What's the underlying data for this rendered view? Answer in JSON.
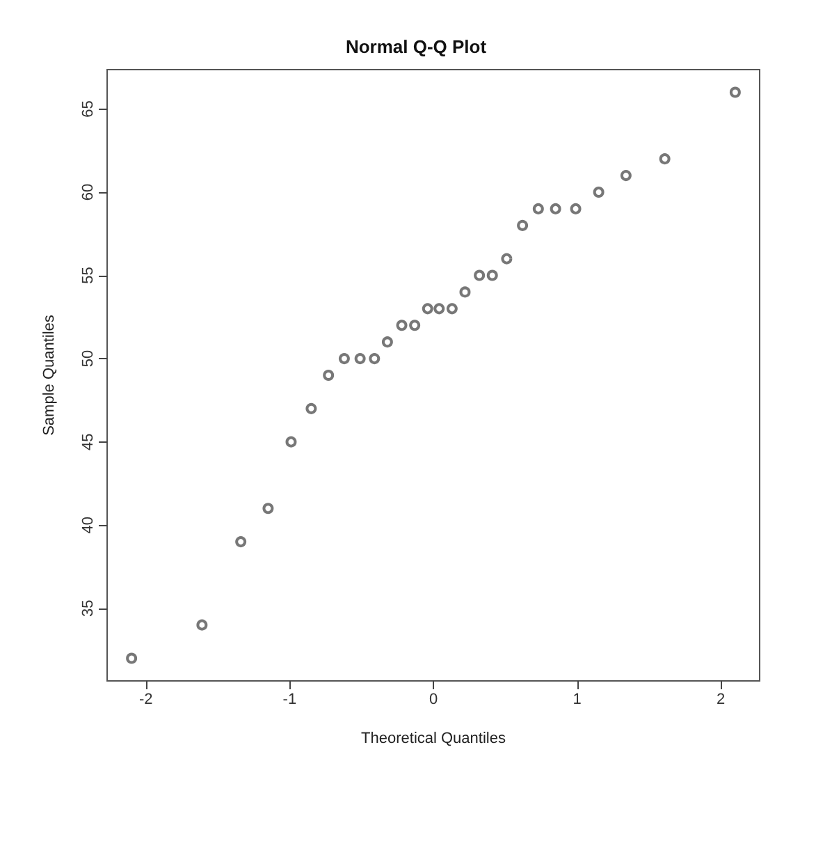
{
  "chart_data": {
    "type": "scatter",
    "title": "Normal Q-Q Plot",
    "xlabel": "Theoretical Quantiles",
    "ylabel": "Sample Quantiles",
    "x": [
      -2.1,
      -1.61,
      -1.34,
      -1.15,
      -0.99,
      -0.85,
      -0.73,
      -0.62,
      -0.51,
      -0.41,
      -0.32,
      -0.22,
      -0.13,
      -0.04,
      0.04,
      0.13,
      0.22,
      0.32,
      0.41,
      0.51,
      0.62,
      0.73,
      0.85,
      0.99,
      1.15,
      1.34,
      1.61,
      2.1
    ],
    "values": [
      32,
      34,
      39,
      41,
      45,
      47,
      49,
      50,
      50,
      50,
      51,
      52,
      52,
      53,
      53,
      53,
      54,
      55,
      55,
      56,
      58,
      59,
      59,
      59,
      60,
      61,
      62,
      66
    ],
    "color": "#555555",
    "marker": "circle",
    "grid": false,
    "xlim": [
      -2.27,
      2.27
    ],
    "xticks": [
      -2,
      -1,
      0,
      1,
      2
    ],
    "ylim": [
      30.64,
      67.36
    ],
    "yticks": [
      35,
      40,
      45,
      50,
      55,
      60,
      65
    ]
  }
}
